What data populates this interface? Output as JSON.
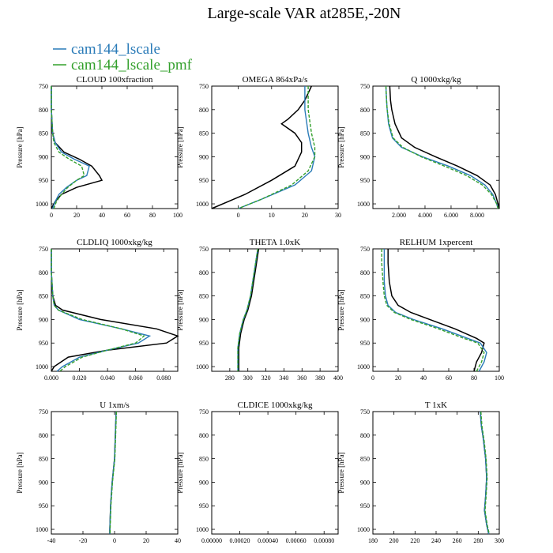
{
  "title": "Large-scale VAR at285E,-20N",
  "legend": [
    {
      "name": "cam144_lscale",
      "color": "#2a7bb8"
    },
    {
      "name": "cam144_lscale_pmf",
      "color": "#33a02c"
    }
  ],
  "colors": {
    "black": "#000000",
    "blue": "#2a7bb8",
    "green": "#33a02c"
  },
  "ylabel": "Pressure [hPa]",
  "chart_data": [
    {
      "type": "line",
      "title": "CLOUD 100xfraction",
      "xlim": [
        0,
        100
      ],
      "ylim": [
        750,
        1010
      ],
      "xticks": [
        "0",
        "20",
        "40",
        "60",
        "80",
        "100"
      ],
      "xtickvals": [
        0,
        20,
        40,
        60,
        80,
        100
      ],
      "yticks": [
        "750",
        "800",
        "850",
        "900",
        "950",
        "1000"
      ],
      "ytickvals": [
        750,
        800,
        850,
        900,
        950,
        1000
      ],
      "series": [
        {
          "color": "black",
          "y": [
            750,
            800,
            850,
            870,
            890,
            905,
            920,
            940,
            950,
            965,
            980,
            995,
            1010
          ],
          "x": [
            0,
            0,
            1,
            3,
            10,
            22,
            32,
            38,
            40,
            20,
            8,
            3,
            0
          ]
        },
        {
          "color": "blue",
          "y": [
            750,
            800,
            850,
            870,
            890,
            905,
            920,
            940,
            950,
            965,
            980,
            995,
            1010
          ],
          "x": [
            0,
            0,
            1,
            3,
            8,
            18,
            30,
            28,
            20,
            12,
            6,
            3,
            1
          ]
        },
        {
          "color": "green",
          "y": [
            750,
            800,
            850,
            870,
            890,
            905,
            920,
            940,
            950,
            965,
            980,
            995,
            1010
          ],
          "x": [
            0,
            0,
            1,
            2,
            6,
            14,
            24,
            26,
            20,
            13,
            8,
            4,
            2
          ]
        }
      ]
    },
    {
      "type": "line",
      "title": "OMEGA 864xPa/s",
      "xlim": [
        -8,
        30
      ],
      "ylim": [
        750,
        1010
      ],
      "xticks": [
        "0",
        "10",
        "20",
        "30"
      ],
      "xtickvals": [
        0,
        10,
        20,
        30
      ],
      "yticks": [
        "750",
        "800",
        "850",
        "900",
        "950",
        "1000"
      ],
      "ytickvals": [
        750,
        800,
        850,
        900,
        950,
        1000
      ],
      "series": [
        {
          "color": "black",
          "y": [
            750,
            780,
            800,
            820,
            830,
            850,
            870,
            890,
            905,
            920,
            950,
            980,
            1010
          ],
          "x": [
            22,
            20,
            18,
            15,
            13,
            17,
            19,
            19,
            18,
            17,
            10,
            2,
            -8
          ]
        },
        {
          "color": "blue",
          "y": [
            750,
            800,
            850,
            880,
            900,
            930,
            960,
            990,
            1010
          ],
          "x": [
            20,
            20,
            21,
            22,
            23,
            22,
            17,
            7,
            0
          ]
        },
        {
          "color": "green",
          "y": [
            750,
            800,
            850,
            880,
            900,
            930,
            960,
            990,
            1010
          ],
          "x": [
            21,
            21,
            22,
            23,
            23,
            21,
            16,
            7,
            0
          ]
        }
      ]
    },
    {
      "type": "line",
      "title": "Q 1000xkg/kg",
      "xlim": [
        0,
        9700
      ],
      "ylim": [
        750,
        1010
      ],
      "xticks": [
        "2.000",
        "4.000",
        "6.000",
        "8.000"
      ],
      "xtickvals": [
        2000,
        4000,
        6000,
        8000
      ],
      "yticks": [
        "750",
        "800",
        "850",
        "900",
        "950",
        "1000"
      ],
      "ytickvals": [
        750,
        800,
        850,
        900,
        950,
        1000
      ],
      "series": [
        {
          "color": "black",
          "y": [
            750,
            780,
            800,
            830,
            860,
            880,
            900,
            920,
            940,
            960,
            980,
            1000,
            1010
          ],
          "x": [
            1300,
            1350,
            1450,
            1700,
            2200,
            3200,
            4800,
            6500,
            8000,
            9000,
            9400,
            9600,
            9700
          ]
        },
        {
          "color": "blue",
          "y": [
            750,
            780,
            800,
            830,
            860,
            880,
            900,
            920,
            940,
            960,
            980,
            1000,
            1010
          ],
          "x": [
            1000,
            1050,
            1100,
            1200,
            1500,
            2200,
            3800,
            5800,
            7500,
            8600,
            9200,
            9500,
            9600
          ]
        },
        {
          "color": "green",
          "y": [
            750,
            780,
            800,
            830,
            860,
            880,
            900,
            920,
            940,
            960,
            980,
            1000,
            1010
          ],
          "x": [
            1000,
            1050,
            1100,
            1250,
            1550,
            2300,
            3700,
            5500,
            7200,
            8400,
            9100,
            9500,
            9600
          ]
        }
      ]
    },
    {
      "type": "line",
      "title": "CLDLIQ 1000xkg/kg",
      "xlim": [
        0,
        0.09
      ],
      "ylim": [
        750,
        1010
      ],
      "xticks": [
        "0.000",
        "0.020",
        "0.040",
        "0.060",
        "0.080"
      ],
      "xtickvals": [
        0,
        0.02,
        0.04,
        0.06,
        0.08
      ],
      "yticks": [
        "750",
        "800",
        "850",
        "900",
        "950",
        "1000"
      ],
      "ytickvals": [
        750,
        800,
        850,
        900,
        950,
        1000
      ],
      "series": [
        {
          "color": "black",
          "y": [
            750,
            800,
            850,
            870,
            880,
            900,
            920,
            935,
            950,
            965,
            980,
            1000,
            1010
          ],
          "x": [
            0,
            0,
            0.001,
            0.003,
            0.008,
            0.035,
            0.075,
            0.09,
            0.082,
            0.04,
            0.012,
            0.002,
            0
          ]
        },
        {
          "color": "blue",
          "y": [
            750,
            800,
            850,
            870,
            880,
            900,
            920,
            935,
            950,
            965,
            980,
            1000,
            1010
          ],
          "x": [
            0,
            0,
            0.001,
            0.002,
            0.005,
            0.02,
            0.05,
            0.07,
            0.062,
            0.04,
            0.02,
            0.008,
            0.004
          ]
        },
        {
          "color": "green",
          "y": [
            750,
            800,
            850,
            870,
            880,
            900,
            920,
            935,
            950,
            965,
            980,
            1000,
            1010
          ],
          "x": [
            0,
            0,
            0.001,
            0.002,
            0.005,
            0.022,
            0.05,
            0.066,
            0.06,
            0.04,
            0.022,
            0.01,
            0.006
          ]
        }
      ]
    },
    {
      "type": "line",
      "title": "THETA 1.0xK",
      "xlim": [
        260,
        400
      ],
      "ylim": [
        750,
        1010
      ],
      "xticks": [
        "280",
        "300",
        "320",
        "340",
        "360",
        "380",
        "400"
      ],
      "xtickvals": [
        280,
        300,
        320,
        340,
        360,
        380,
        400
      ],
      "yticks": [
        "750",
        "800",
        "850",
        "900",
        "950",
        "1000"
      ],
      "ytickvals": [
        750,
        800,
        850,
        900,
        950,
        1000
      ],
      "series": [
        {
          "color": "black",
          "y": [
            750,
            800,
            850,
            880,
            900,
            930,
            960,
            1000,
            1010
          ],
          "x": [
            312,
            308,
            304,
            300,
            296,
            292,
            290,
            290,
            290
          ]
        },
        {
          "color": "blue",
          "y": [
            750,
            800,
            850,
            880,
            900,
            930,
            960,
            1000,
            1010
          ],
          "x": [
            311,
            307,
            303,
            299,
            295,
            291,
            289,
            289,
            289
          ]
        },
        {
          "color": "green",
          "y": [
            750,
            800,
            850,
            880,
            900,
            930,
            960,
            1000,
            1010
          ],
          "x": [
            311,
            307,
            303,
            299,
            295,
            291,
            289,
            289,
            289
          ]
        }
      ]
    },
    {
      "type": "line",
      "title": "RELHUM 1xpercent",
      "xlim": [
        0,
        100
      ],
      "ylim": [
        750,
        1010
      ],
      "xticks": [
        "0",
        "20",
        "40",
        "60",
        "80",
        "100"
      ],
      "xtickvals": [
        0,
        20,
        40,
        60,
        80,
        100
      ],
      "yticks": [
        "750",
        "800",
        "850",
        "900",
        "950",
        "1000"
      ],
      "ytickvals": [
        750,
        800,
        850,
        900,
        950,
        1000
      ],
      "series": [
        {
          "color": "black",
          "y": [
            750,
            780,
            820,
            850,
            870,
            885,
            900,
            920,
            940,
            950,
            970,
            990,
            1010
          ],
          "x": [
            12,
            12,
            13,
            15,
            20,
            30,
            45,
            65,
            82,
            88,
            86,
            82,
            80
          ]
        },
        {
          "color": "blue",
          "y": [
            750,
            780,
            820,
            850,
            870,
            885,
            900,
            920,
            940,
            950,
            970,
            990,
            1010
          ],
          "x": [
            9,
            9,
            9,
            10,
            12,
            18,
            32,
            55,
            75,
            85,
            90,
            88,
            84
          ]
        },
        {
          "color": "green",
          "y": [
            750,
            780,
            820,
            850,
            870,
            885,
            900,
            920,
            940,
            950,
            970,
            990,
            1010
          ],
          "x": [
            7,
            7,
            8,
            9,
            11,
            17,
            30,
            52,
            72,
            83,
            88,
            86,
            82
          ]
        }
      ]
    },
    {
      "type": "line",
      "title": "U 1xm/s",
      "xlim": [
        -40,
        40
      ],
      "ylim": [
        750,
        1010
      ],
      "xticks": [
        "-40",
        "-20",
        "0",
        "20",
        "40"
      ],
      "xtickvals": [
        -40,
        -20,
        0,
        20,
        40
      ],
      "yticks": [
        "750",
        "800",
        "850",
        "900",
        "950",
        "1000"
      ],
      "ytickvals": [
        750,
        800,
        850,
        900,
        950,
        1000
      ],
      "series": [
        {
          "color": "black",
          "y": [
            750,
            800,
            850,
            900,
            950,
            1000,
            1010
          ],
          "x": [
            1,
            0.5,
            0,
            -1.5,
            -2.5,
            -3,
            -3
          ]
        },
        {
          "color": "blue",
          "y": [
            750,
            800,
            850,
            900,
            950,
            1000,
            1010
          ],
          "x": [
            1,
            0.5,
            0,
            -1.5,
            -2.5,
            -3,
            -3
          ]
        },
        {
          "color": "green",
          "y": [
            750,
            800,
            850,
            900,
            950,
            1000,
            1010
          ],
          "x": [
            1.2,
            0.7,
            0.2,
            -1.3,
            -2.3,
            -2.8,
            -2.8
          ]
        }
      ]
    },
    {
      "type": "line",
      "title": "CLDICE 1000xkg/kg",
      "xlim": [
        0,
        0.0009
      ],
      "ylim": [
        750,
        1010
      ],
      "xticks": [
        "0.00000",
        "0.00020",
        "0.00040",
        "0.00060",
        "0.00080"
      ],
      "xtickvals": [
        0,
        0.0002,
        0.0004,
        0.0006,
        0.0008
      ],
      "yticks": [
        "750",
        "800",
        "850",
        "900",
        "950",
        "1000"
      ],
      "ytickvals": [
        750,
        800,
        850,
        900,
        950,
        1000
      ],
      "series": []
    },
    {
      "type": "line",
      "title": "T 1xK",
      "xlim": [
        180,
        300
      ],
      "ylim": [
        750,
        1010
      ],
      "xticks": [
        "180",
        "200",
        "220",
        "240",
        "260",
        "280",
        "300"
      ],
      "xtickvals": [
        180,
        200,
        220,
        240,
        260,
        280,
        300
      ],
      "yticks": [
        "750",
        "800",
        "850",
        "900",
        "950",
        "1000"
      ],
      "ytickvals": [
        750,
        800,
        850,
        900,
        950,
        1000
      ],
      "series": [
        {
          "color": "black",
          "y": [
            750,
            780,
            810,
            850,
            890,
            930,
            960,
            990,
            1010
          ],
          "x": [
            282,
            283,
            285,
            287,
            288,
            287,
            286,
            288,
            290
          ]
        },
        {
          "color": "blue",
          "y": [
            750,
            780,
            810,
            850,
            890,
            930,
            960,
            990,
            1010
          ],
          "x": [
            282,
            283,
            285,
            287,
            288,
            287,
            286,
            288,
            290
          ]
        },
        {
          "color": "green",
          "y": [
            750,
            780,
            810,
            850,
            890,
            930,
            960,
            990,
            1010
          ],
          "x": [
            282.5,
            283.5,
            285.5,
            287.5,
            288.5,
            287.5,
            286.5,
            288.5,
            290.5
          ]
        }
      ]
    }
  ]
}
